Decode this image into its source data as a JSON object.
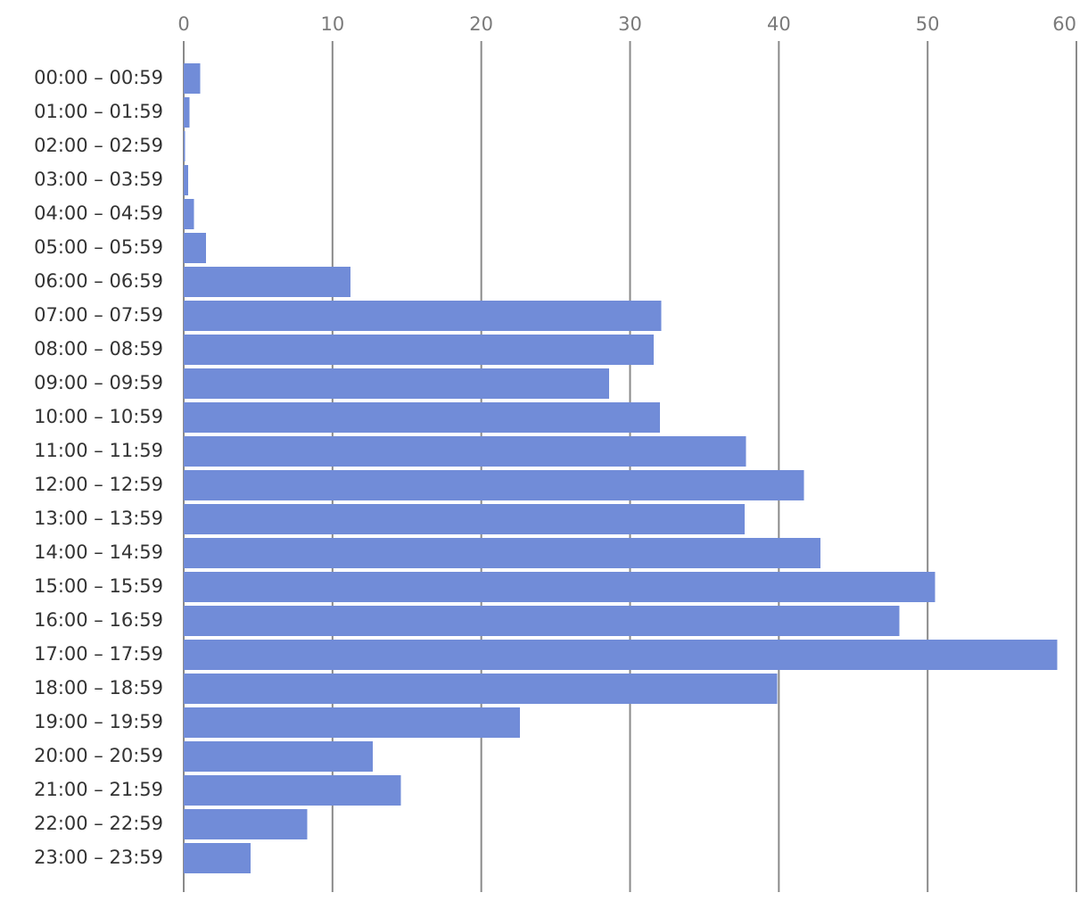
{
  "chart_data": {
    "type": "bar",
    "orientation": "horizontal",
    "title": "",
    "xlabel": "",
    "ylabel": "",
    "xlim": [
      0,
      60
    ],
    "ticks": [
      0,
      10,
      20,
      30,
      40,
      50,
      60
    ],
    "tick_labels": [
      "0",
      "10",
      "20",
      "30",
      "40",
      "50",
      "60"
    ],
    "grid": true,
    "legend": "none",
    "categories": [
      "00:00 – 00:59",
      "01:00 – 01:59",
      "02:00 – 02:59",
      "03:00 – 03:59",
      "04:00 – 04:59",
      "05:00 – 05:59",
      "06:00 – 06:59",
      "07:00 – 07:59",
      "08:00 – 08:59",
      "09:00 – 09:59",
      "10:00 – 10:59",
      "11:00 – 11:59",
      "12:00 – 12:59",
      "13:00 – 13:59",
      "14:00 – 14:59",
      "15:00 – 15:59",
      "16:00 – 16:59",
      "17:00 – 17:59",
      "18:00 – 18:59",
      "19:00 – 19:59",
      "20:00 – 20:59",
      "21:00 – 21:59",
      "22:00 – 22:59",
      "23:00 – 23:59"
    ],
    "values": [
      1.1,
      0.4,
      0.1,
      0.3,
      0.7,
      1.5,
      11.2,
      32.1,
      31.6,
      28.6,
      32.0,
      37.8,
      41.7,
      37.7,
      42.8,
      50.5,
      48.1,
      58.7,
      39.9,
      22.6,
      12.7,
      14.6,
      8.3,
      4.5
    ],
    "bar_color": "#718cd8",
    "grid_color": "#8a8a8a",
    "tick_label_color": "#7a7a7a",
    "category_label_color": "#333333"
  }
}
